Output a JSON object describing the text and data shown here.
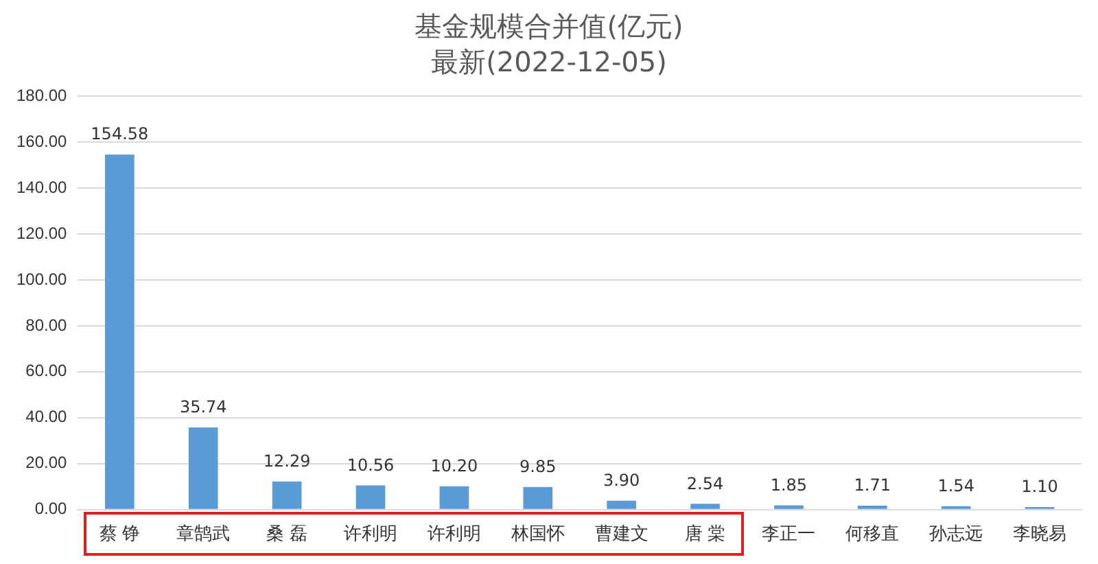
{
  "chart_data": {
    "type": "bar",
    "title": "基金规模合并值(亿元)",
    "subtitle": "最新(2022-12-05)",
    "categories": [
      "蔡 铮",
      "章鹄武",
      "桑 磊",
      "许利明",
      "许利明",
      "林国怀",
      "曹建文",
      "唐 棠",
      "李正一",
      "何移直",
      "孙志远",
      "李晓易"
    ],
    "values": [
      154.58,
      35.74,
      12.29,
      10.56,
      10.2,
      9.85,
      3.9,
      2.54,
      1.85,
      1.71,
      1.54,
      1.1
    ],
    "value_labels": [
      "154.58",
      "35.74",
      "12.29",
      "10.56",
      "10.20",
      "9.85",
      "3.90",
      "2.54",
      "1.85",
      "1.71",
      "1.54",
      "1.10"
    ],
    "color": "#5b9bd5",
    "ylim": [
      0,
      180
    ],
    "yticks": [
      {
        "value": 0,
        "label": "0.00"
      },
      {
        "value": 20,
        "label": "20.00"
      },
      {
        "value": 40,
        "label": "40.00"
      },
      {
        "value": 60,
        "label": "60.00"
      },
      {
        "value": 80,
        "label": "80.00"
      },
      {
        "value": 100,
        "label": "100.00"
      },
      {
        "value": 120,
        "label": "120.00"
      },
      {
        "value": 140,
        "label": "140.00"
      },
      {
        "value": 160,
        "label": "160.00"
      },
      {
        "value": 180,
        "label": "180.00"
      }
    ],
    "grid": "y"
  }
}
